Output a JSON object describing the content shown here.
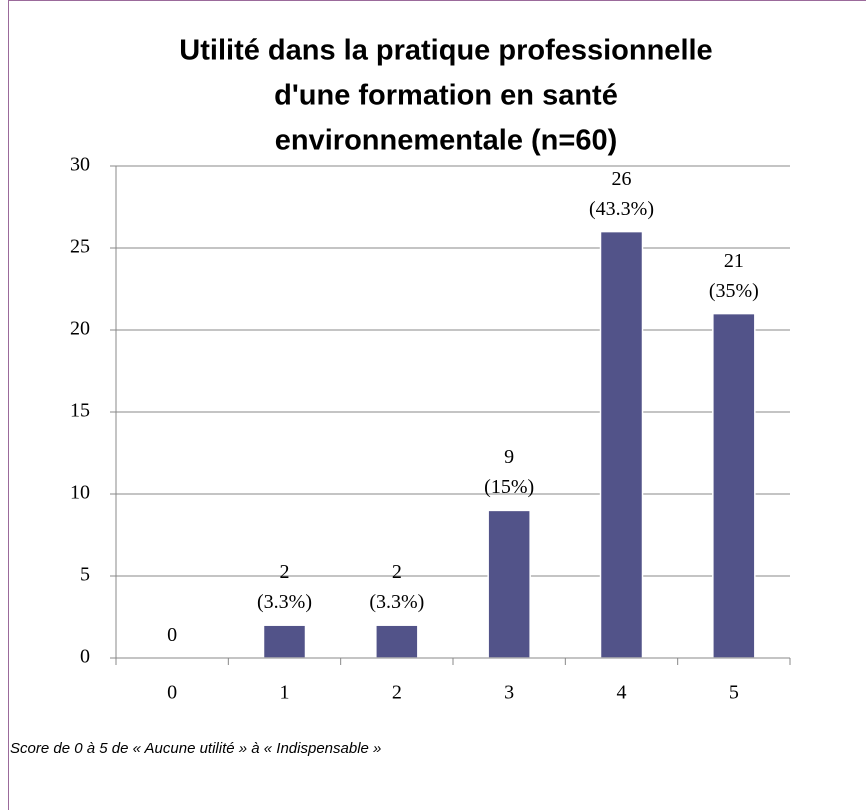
{
  "chart_data": {
    "type": "bar",
    "title": [
      "Utilité dans la pratique professionnelle",
      "d'une formation en santé",
      "environnementale (n=60)"
    ],
    "categories": [
      "0",
      "1",
      "2",
      "3",
      "4",
      "5"
    ],
    "values": [
      0,
      2,
      2,
      9,
      26,
      21
    ],
    "value_labels": [
      "0",
      "2\n(3.3%)",
      "2\n(3.3%)",
      "9\n(15%)",
      "26\n(43.3%)",
      "21\n(35%)"
    ],
    "color": "#525389",
    "ylim": [
      0,
      30
    ],
    "yticks": [
      0,
      5,
      10,
      15,
      20,
      25,
      30
    ],
    "grid": true,
    "note": "Score de 0 à 5 de « Aucune utilité » à « Indispensable »"
  }
}
